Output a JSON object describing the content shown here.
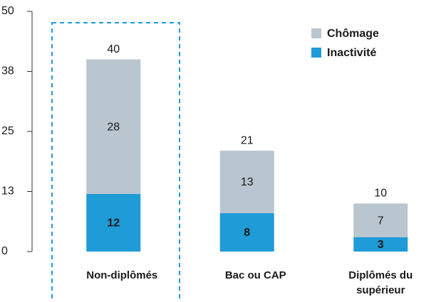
{
  "chart_data": {
    "type": "stacked_bar",
    "categories": [
      "Non-diplômés",
      "Bac ou CAP",
      "Diplômés du supérieur"
    ],
    "series": [
      {
        "name": "Inactivité",
        "color": "#1f9bd7",
        "values": [
          12,
          8,
          3
        ]
      },
      {
        "name": "Chômage",
        "color": "#b9c6cf",
        "values": [
          28,
          13,
          7
        ]
      }
    ],
    "totals": [
      40,
      21,
      10
    ],
    "ylim": [
      0,
      50
    ],
    "yticks": [
      0,
      {
        "value": 12.5,
        "label": "13"
      },
      25,
      {
        "value": 37.5,
        "label": "38"
      },
      50
    ],
    "legend": "top-right",
    "highlight": 0
  }
}
